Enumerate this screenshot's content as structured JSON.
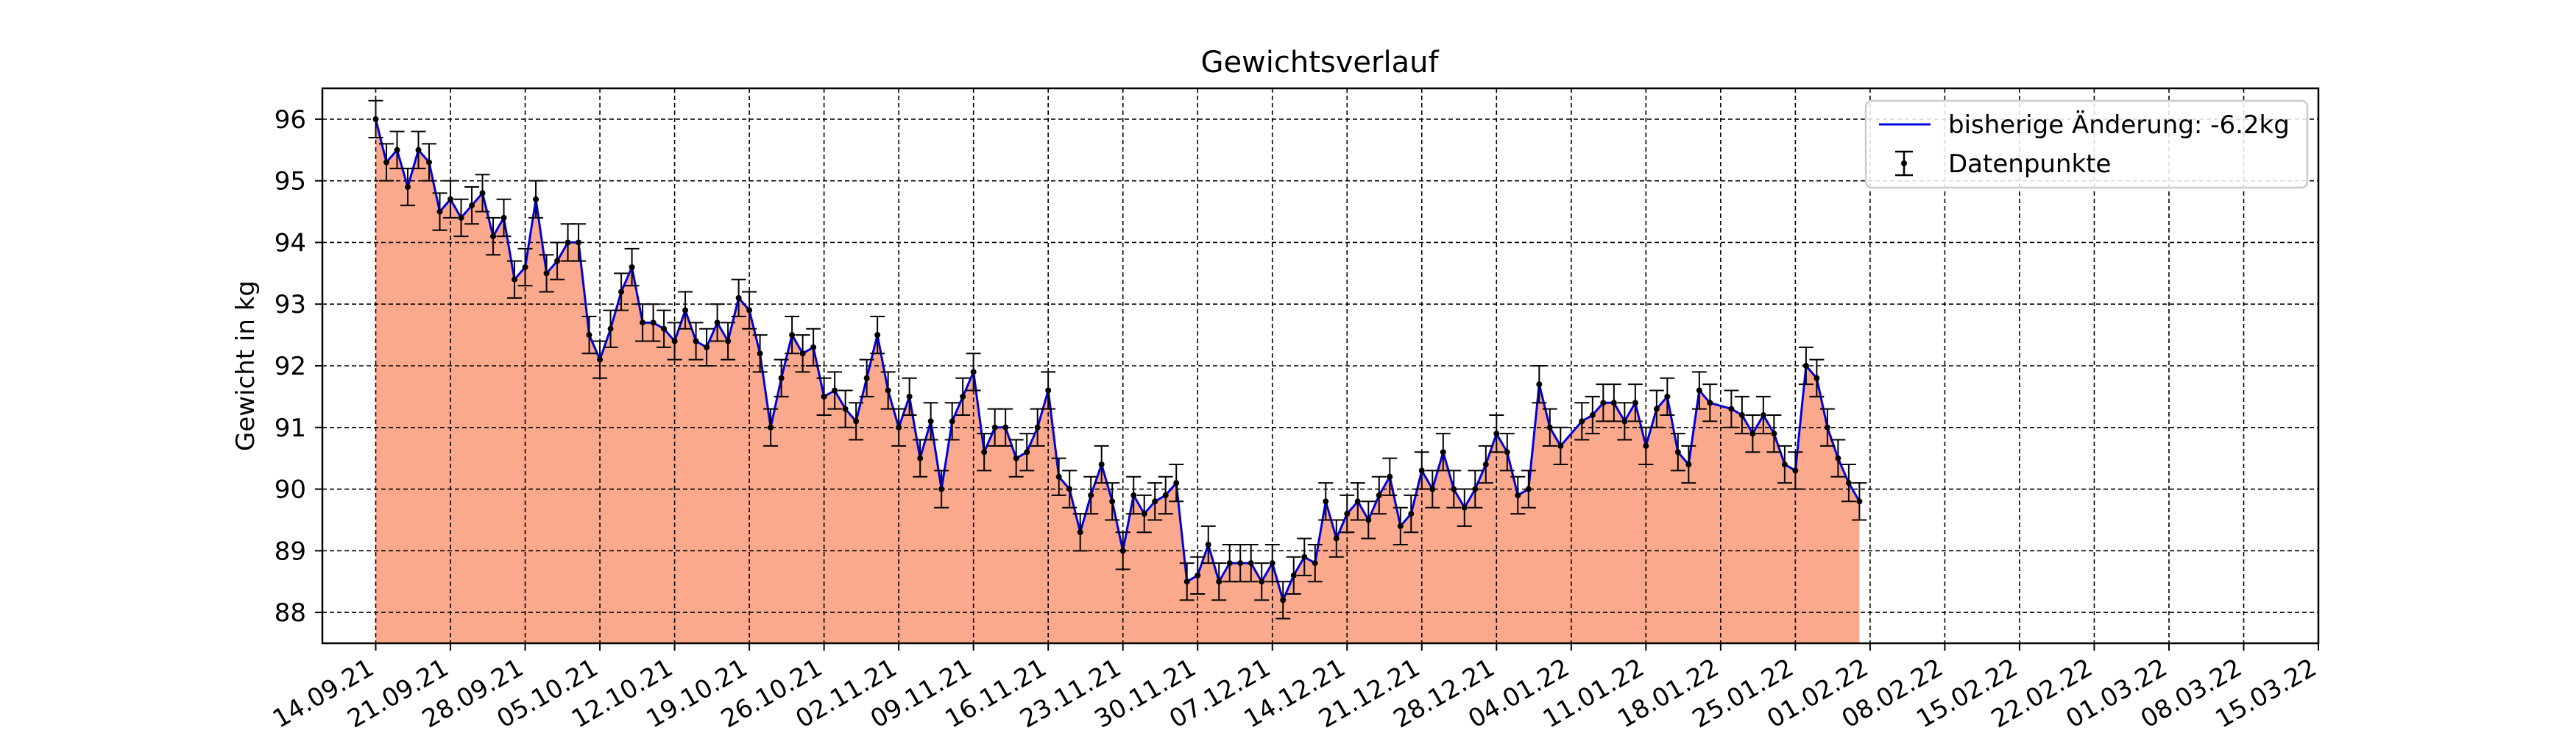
{
  "chart_data": {
    "type": "line",
    "title": "Gewichtsverlauf",
    "xlabel": "",
    "ylabel": "Gewicht in kg",
    "grid": true,
    "legend_position": "top-right",
    "x_tick_labels": [
      "14.09.21",
      "21.09.21",
      "28.09.21",
      "05.10.21",
      "12.10.21",
      "19.10.21",
      "26.10.21",
      "02.11.21",
      "09.11.21",
      "16.11.21",
      "23.11.21",
      "30.11.21",
      "07.12.21",
      "14.12.21",
      "21.12.21",
      "28.12.21",
      "04.01.22",
      "11.01.22",
      "18.01.22",
      "25.01.22",
      "01.02.22",
      "08.02.22",
      "15.02.22",
      "22.02.22",
      "01.03.22",
      "08.03.22",
      "15.03.22"
    ],
    "y_ticks": [
      88,
      89,
      90,
      91,
      92,
      93,
      94,
      95,
      96
    ],
    "xlim_days": [
      -5,
      182
    ],
    "ylim": [
      87.5,
      96.5
    ],
    "error": 0.3,
    "series": [
      {
        "name": "bisherige Änderung: -6.2kg",
        "kind": "line",
        "color": "#0000dd"
      },
      {
        "name": "Datenpunkte",
        "kind": "errorbar",
        "color": "#000000"
      }
    ],
    "fill_color": "#fba98c",
    "points": [
      [
        "14.09.21",
        96.0
      ],
      [
        "15.09.21",
        95.3
      ],
      [
        "16.09.21",
        95.5
      ],
      [
        "17.09.21",
        94.9
      ],
      [
        "18.09.21",
        95.5
      ],
      [
        "19.09.21",
        95.3
      ],
      [
        "20.09.21",
        94.5
      ],
      [
        "21.09.21",
        94.7
      ],
      [
        "22.09.21",
        94.4
      ],
      [
        "23.09.21",
        94.6
      ],
      [
        "24.09.21",
        94.8
      ],
      [
        "25.09.21",
        94.1
      ],
      [
        "26.09.21",
        94.4
      ],
      [
        "27.09.21",
        93.4
      ],
      [
        "28.09.21",
        93.6
      ],
      [
        "29.09.21",
        94.7
      ],
      [
        "30.09.21",
        93.5
      ],
      [
        "01.10.21",
        93.7
      ],
      [
        "02.10.21",
        94.0
      ],
      [
        "03.10.21",
        94.0
      ],
      [
        "04.10.21",
        92.5
      ],
      [
        "05.10.21",
        92.1
      ],
      [
        "06.10.21",
        92.6
      ],
      [
        "07.10.21",
        93.2
      ],
      [
        "08.10.21",
        93.6
      ],
      [
        "09.10.21",
        92.7
      ],
      [
        "10.10.21",
        92.7
      ],
      [
        "11.10.21",
        92.6
      ],
      [
        "12.10.21",
        92.4
      ],
      [
        "13.10.21",
        92.9
      ],
      [
        "14.10.21",
        92.4
      ],
      [
        "15.10.21",
        92.3
      ],
      [
        "16.10.21",
        92.7
      ],
      [
        "17.10.21",
        92.4
      ],
      [
        "18.10.21",
        93.1
      ],
      [
        "19.10.21",
        92.9
      ],
      [
        "20.10.21",
        92.2
      ],
      [
        "21.10.21",
        91.0
      ],
      [
        "22.10.21",
        91.8
      ],
      [
        "23.10.21",
        92.5
      ],
      [
        "24.10.21",
        92.2
      ],
      [
        "25.10.21",
        92.3
      ],
      [
        "26.10.21",
        91.5
      ],
      [
        "27.10.21",
        91.6
      ],
      [
        "28.10.21",
        91.3
      ],
      [
        "29.10.21",
        91.1
      ],
      [
        "30.10.21",
        91.8
      ],
      [
        "31.10.21",
        92.5
      ],
      [
        "01.11.21",
        91.6
      ],
      [
        "02.11.21",
        91.0
      ],
      [
        "03.11.21",
        91.5
      ],
      [
        "04.11.21",
        90.5
      ],
      [
        "05.11.21",
        91.1
      ],
      [
        "06.11.21",
        90.0
      ],
      [
        "07.11.21",
        91.1
      ],
      [
        "08.11.21",
        91.5
      ],
      [
        "09.11.21",
        91.9
      ],
      [
        "10.11.21",
        90.6
      ],
      [
        "11.11.21",
        91.0
      ],
      [
        "12.11.21",
        91.0
      ],
      [
        "13.11.21",
        90.5
      ],
      [
        "14.11.21",
        90.6
      ],
      [
        "15.11.21",
        91.0
      ],
      [
        "16.11.21",
        91.6
      ],
      [
        "17.11.21",
        90.2
      ],
      [
        "18.11.21",
        90.0
      ],
      [
        "19.11.21",
        89.3
      ],
      [
        "20.11.21",
        89.9
      ],
      [
        "21.11.21",
        90.4
      ],
      [
        "22.11.21",
        89.8
      ],
      [
        "23.11.21",
        89.0
      ],
      [
        "24.11.21",
        89.9
      ],
      [
        "25.11.21",
        89.6
      ],
      [
        "26.11.21",
        89.8
      ],
      [
        "27.11.21",
        89.9
      ],
      [
        "28.11.21",
        90.1
      ],
      [
        "29.11.21",
        88.5
      ],
      [
        "30.11.21",
        88.6
      ],
      [
        "01.12.21",
        89.1
      ],
      [
        "02.12.21",
        88.5
      ],
      [
        "03.12.21",
        88.8
      ],
      [
        "04.12.21",
        88.8
      ],
      [
        "05.12.21",
        88.8
      ],
      [
        "06.12.21",
        88.5
      ],
      [
        "07.12.21",
        88.8
      ],
      [
        "08.12.21",
        88.2
      ],
      [
        "09.12.21",
        88.6
      ],
      [
        "10.12.21",
        88.9
      ],
      [
        "11.12.21",
        88.8
      ],
      [
        "12.12.21",
        89.8
      ],
      [
        "13.12.21",
        89.2
      ],
      [
        "14.12.21",
        89.6
      ],
      [
        "15.12.21",
        89.8
      ],
      [
        "16.12.21",
        89.5
      ],
      [
        "17.12.21",
        89.9
      ],
      [
        "18.12.21",
        90.2
      ],
      [
        "19.12.21",
        89.4
      ],
      [
        "20.12.21",
        89.6
      ],
      [
        "21.12.21",
        90.3
      ],
      [
        "22.12.21",
        90.0
      ],
      [
        "23.12.21",
        90.6
      ],
      [
        "24.12.21",
        90.0
      ],
      [
        "25.12.21",
        89.7
      ],
      [
        "26.12.21",
        90.0
      ],
      [
        "27.12.21",
        90.4
      ],
      [
        "28.12.21",
        90.9
      ],
      [
        "29.12.21",
        90.6
      ],
      [
        "30.12.21",
        89.9
      ],
      [
        "31.12.21",
        90.0
      ],
      [
        "01.01.22",
        91.7
      ],
      [
        "02.01.22",
        91.0
      ],
      [
        "03.01.22",
        90.7
      ],
      [
        "05.01.22",
        91.1
      ],
      [
        "06.01.22",
        91.2
      ],
      [
        "07.01.22",
        91.4
      ],
      [
        "08.01.22",
        91.4
      ],
      [
        "09.01.22",
        91.1
      ],
      [
        "10.01.22",
        91.4
      ],
      [
        "11.01.22",
        90.7
      ],
      [
        "12.01.22",
        91.3
      ],
      [
        "13.01.22",
        91.5
      ],
      [
        "14.01.22",
        90.6
      ],
      [
        "15.01.22",
        90.4
      ],
      [
        "16.01.22",
        91.6
      ],
      [
        "17.01.22",
        91.4
      ],
      [
        "19.01.22",
        91.3
      ],
      [
        "20.01.22",
        91.2
      ],
      [
        "21.01.22",
        90.9
      ],
      [
        "22.01.22",
        91.2
      ],
      [
        "23.01.22",
        90.9
      ],
      [
        "24.01.22",
        90.4
      ],
      [
        "25.01.22",
        90.3
      ],
      [
        "26.01.22",
        92.0
      ],
      [
        "27.01.22",
        91.8
      ],
      [
        "28.01.22",
        91.0
      ],
      [
        "29.01.22",
        90.5
      ],
      [
        "30.01.22",
        90.1
      ],
      [
        "31.01.22",
        89.8
      ]
    ]
  }
}
